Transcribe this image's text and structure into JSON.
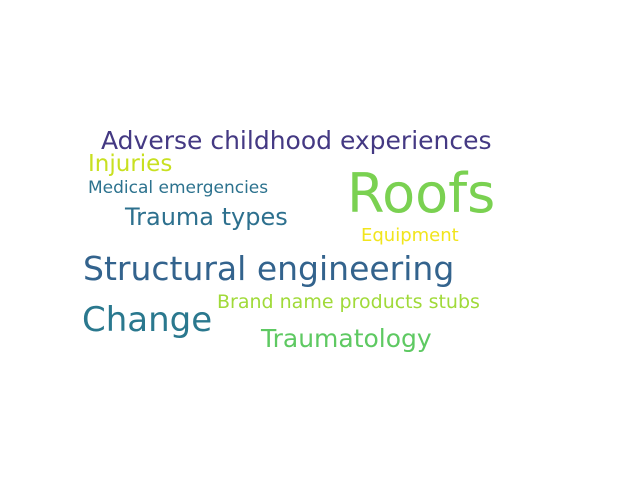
{
  "words": [
    {
      "text": "Adverse childhood experiences",
      "color": "#443983"
    },
    {
      "text": "Injuries",
      "color": "#c8e020"
    },
    {
      "text": "Medical emergencies",
      "color": "#2c728e"
    },
    {
      "text": "Roofs",
      "color": "#7ad151"
    },
    {
      "text": "Trauma types",
      "color": "#2d708e"
    },
    {
      "text": "Equipment",
      "color": "#f1e51d"
    },
    {
      "text": "Structural engineering",
      "color": "#33638d"
    },
    {
      "text": "Change",
      "color": "#2a788e"
    },
    {
      "text": "Brand name products stubs",
      "color": "#a0da39"
    },
    {
      "text": "Traumatology",
      "color": "#5ec962"
    }
  ]
}
